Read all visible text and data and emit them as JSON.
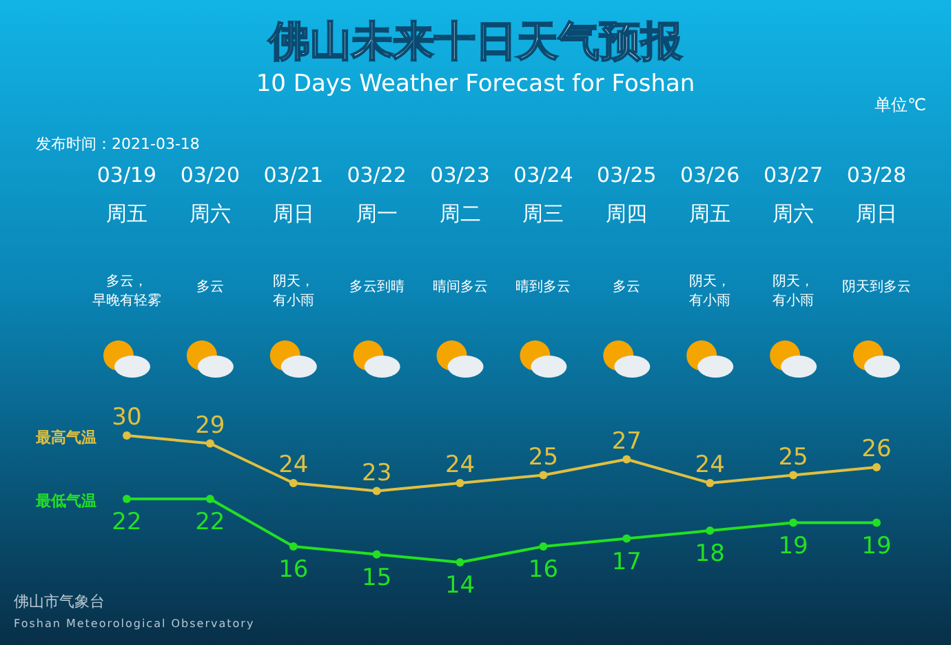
{
  "chart_data": {
    "type": "line",
    "title": "佛山未来十日天气预报",
    "subtitle": "10 Days Weather Forecast for Foshan",
    "categories": [
      "03/19\n周五",
      "03/20\n周六",
      "03/21\n周日",
      "03/22\n周一",
      "03/23\n周二",
      "03/24\n周三",
      "03/25\n周四",
      "03/26\n周五",
      "03/27\n周六",
      "03/28\n周日"
    ],
    "series": [
      {
        "name": "最高气温",
        "color": "#e0c040",
        "values": [
          30,
          29,
          24,
          23,
          24,
          25,
          27,
          24,
          25,
          26
        ]
      },
      {
        "name": "最低气温",
        "color": "#22e022",
        "values": [
          22,
          22,
          16,
          15,
          14,
          16,
          17,
          18,
          19,
          19
        ]
      }
    ],
    "annotations": [
      "单位℃",
      "发布时间：2021-03-18",
      "多云，早晚有轻雾",
      "多云",
      "阴天，有小雨",
      "多云到晴",
      "晴间多云",
      "晴到多云",
      "多云",
      "阴天，有小雨",
      "阴天，有小雨",
      "阴天到多云",
      "佛山市气象台",
      "Foshan Meteorological Observatory"
    ],
    "data_labels": true,
    "legend": "left",
    "marker": "circle",
    "line_style": "solid"
  }
}
